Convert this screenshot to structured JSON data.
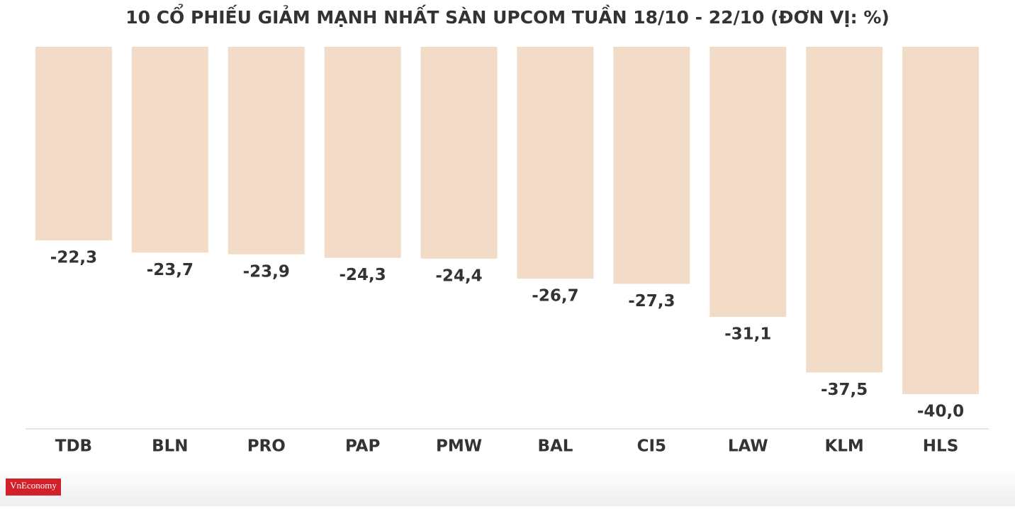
{
  "chart_data": {
    "type": "bar",
    "title": "10 CỔ PHIẾU GIẢM MẠNH NHẤT SÀN UPCOM TUẦN 18/10 - 22/10 (ĐƠN VỊ: %)",
    "categories": [
      "TDB",
      "BLN",
      "PRO",
      "PAP",
      "PMW",
      "BAL",
      "CI5",
      "LAW",
      "KLM",
      "HLS"
    ],
    "values": [
      -22.3,
      -23.7,
      -23.9,
      -24.3,
      -24.4,
      -26.7,
      -27.3,
      -31.1,
      -37.5,
      -40.0
    ],
    "value_labels": [
      "-22,3",
      "-23,7",
      "-23,9",
      "-24,3",
      "-24,4",
      "-26,7",
      "-27,3",
      "-31,1",
      "-37,5",
      "-40,0"
    ],
    "color": "#f2dcc7"
  },
  "logo": "VnEconomy"
}
